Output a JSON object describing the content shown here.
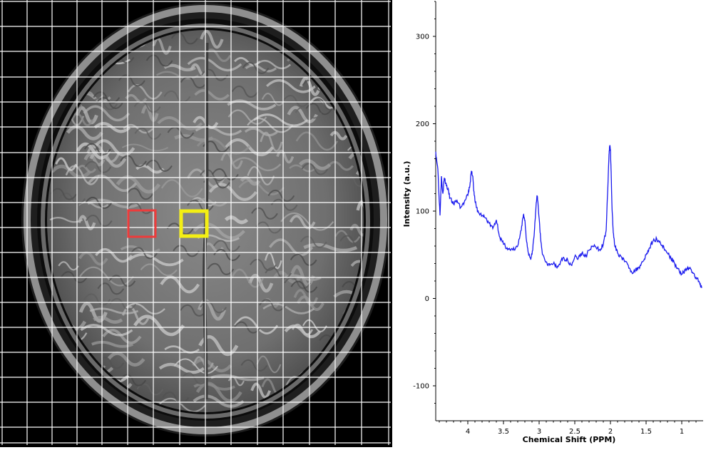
{
  "mri": {
    "grid_color": "#ffffff",
    "voxels": [
      {
        "name": "voxel-red",
        "color": "#ee3b3b"
      },
      {
        "name": "voxel-yellow",
        "color": "#f4ef13"
      }
    ]
  },
  "chart_data": {
    "type": "line",
    "xlabel": "Chemical Shift (PPM)",
    "ylabel": "Intensity (a.u.)",
    "xlim": [
      4.45,
      0.7
    ],
    "ylim": [
      -140,
      340
    ],
    "x_reversed": true,
    "x_ticks": [
      4,
      3.5,
      3,
      2.5,
      2,
      1.5,
      1
    ],
    "y_ticks": [
      300,
      200,
      100,
      0,
      -100
    ],
    "line_color": "#1a1aee",
    "series": [
      {
        "x": [
          4.45,
          4.42,
          4.39,
          4.37,
          4.35,
          4.33,
          4.31,
          4.28,
          4.25,
          4.2,
          4.15,
          4.1,
          4.05,
          4.0,
          3.97,
          3.95,
          3.93,
          3.91,
          3.88,
          3.85,
          3.8,
          3.75,
          3.7,
          3.65,
          3.6,
          3.55,
          3.5,
          3.45,
          3.4,
          3.35,
          3.3,
          3.25,
          3.22,
          3.2,
          3.18,
          3.15,
          3.12,
          3.1,
          3.07,
          3.05,
          3.03,
          3.02,
          3.0,
          2.98,
          2.95,
          2.9,
          2.85,
          2.8,
          2.75,
          2.7,
          2.65,
          2.6,
          2.55,
          2.5,
          2.45,
          2.4,
          2.35,
          2.3,
          2.25,
          2.2,
          2.15,
          2.1,
          2.06,
          2.04,
          2.02,
          2.01,
          2.0,
          1.99,
          1.98,
          1.96,
          1.94,
          1.9,
          1.85,
          1.8,
          1.75,
          1.7,
          1.65,
          1.6,
          1.55,
          1.5,
          1.45,
          1.4,
          1.35,
          1.3,
          1.25,
          1.2,
          1.15,
          1.1,
          1.05,
          1.0,
          0.95,
          0.9,
          0.85,
          0.8,
          0.75,
          0.72
        ],
        "y": [
          168,
          148,
          95,
          140,
          120,
          138,
          132,
          125,
          115,
          108,
          112,
          104,
          110,
          118,
          130,
          146,
          140,
          118,
          104,
          98,
          95,
          92,
          86,
          80,
          90,
          70,
          62,
          58,
          55,
          56,
          60,
          78,
          96,
          90,
          68,
          52,
          46,
          50,
          72,
          98,
          118,
          112,
          92,
          70,
          50,
          42,
          38,
          40,
          35,
          42,
          46,
          44,
          38,
          48,
          46,
          52,
          48,
          55,
          60,
          58,
          56,
          62,
          78,
          120,
          165,
          175,
          170,
          145,
          110,
          75,
          60,
          52,
          48,
          42,
          38,
          30,
          32,
          36,
          42,
          50,
          58,
          66,
          68,
          64,
          58,
          52,
          46,
          40,
          34,
          28,
          32,
          35,
          30,
          24,
          18,
          12
        ]
      }
    ]
  }
}
